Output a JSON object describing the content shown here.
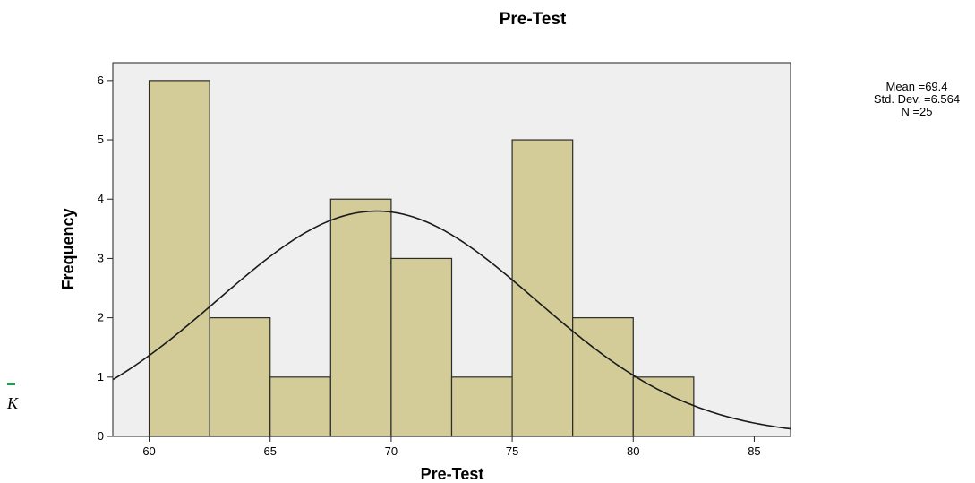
{
  "chart_data": {
    "type": "bar",
    "title": "Pre-Test",
    "xlabel": "Pre-Test",
    "ylabel": "Frequency",
    "xlim": [
      58.5,
      86.5
    ],
    "ylim": [
      0,
      6.3
    ],
    "x_ticks": [
      60,
      65,
      70,
      75,
      80,
      85
    ],
    "y_ticks": [
      0,
      1,
      2,
      3,
      4,
      5,
      6
    ],
    "bins": [
      {
        "start": 60,
        "end": 62.5,
        "frequency": 6
      },
      {
        "start": 62.5,
        "end": 65,
        "frequency": 2
      },
      {
        "start": 65,
        "end": 67.5,
        "frequency": 1
      },
      {
        "start": 67.5,
        "end": 70,
        "frequency": 4
      },
      {
        "start": 70,
        "end": 72.5,
        "frequency": 3
      },
      {
        "start": 72.5,
        "end": 75,
        "frequency": 1
      },
      {
        "start": 75,
        "end": 77.5,
        "frequency": 5
      },
      {
        "start": 77.5,
        "end": 80,
        "frequency": 2
      },
      {
        "start": 80,
        "end": 82.5,
        "frequency": 1
      }
    ],
    "normal_curve": {
      "mean": 69.4,
      "std_dev": 6.564,
      "n": 25,
      "bin_width": 2.5
    },
    "stats_lines": [
      "Mean =69.4",
      "Std. Dev. =6.564",
      "N =25"
    ],
    "grid": false,
    "colors": {
      "plot_background": "#efefef",
      "bar_fill": "#d3cc98",
      "bar_stroke": "#2b2b2b",
      "curve": "#1a1a1a",
      "page_mark": "#1aa34a"
    }
  },
  "page_fragment": {
    "text": "K"
  }
}
